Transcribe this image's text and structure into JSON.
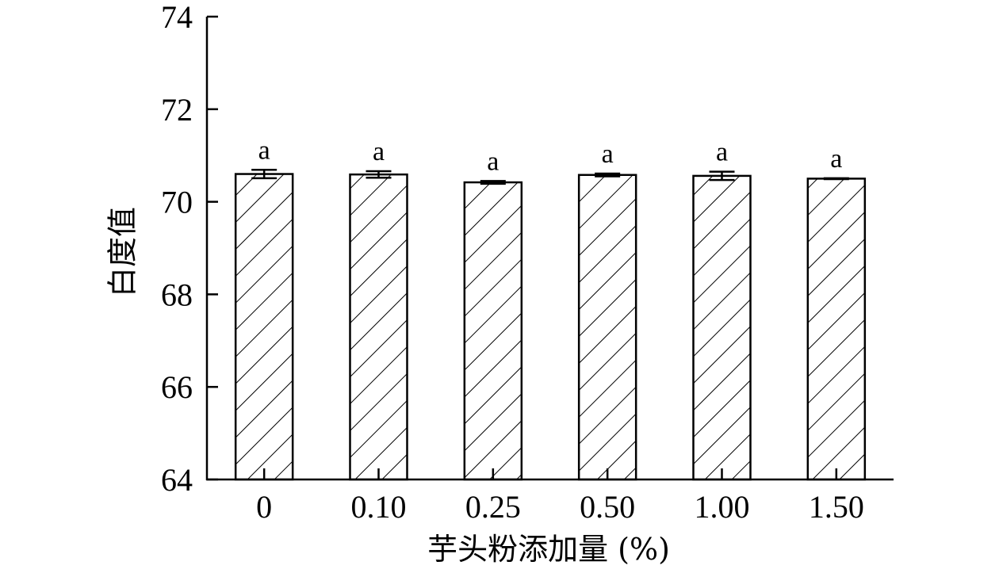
{
  "chart_data": {
    "type": "bar",
    "categories": [
      "0",
      "0.10",
      "0.25",
      "0.50",
      "1.00",
      "1.50"
    ],
    "values": [
      70.6,
      70.59,
      70.42,
      70.58,
      70.56,
      70.5
    ],
    "errors": [
      0.09,
      0.07,
      0.03,
      0.03,
      0.09,
      0.01
    ],
    "significance": [
      "a",
      "a",
      "a",
      "a",
      "a",
      "a"
    ],
    "ylim": [
      64,
      74
    ],
    "yticks": [
      64,
      66,
      68,
      70,
      72,
      74
    ],
    "xlabel": "芋头粉添加量 (%)",
    "ylabel": "白度值",
    "bar_fill": "hatched-diagonal",
    "grid": false
  }
}
